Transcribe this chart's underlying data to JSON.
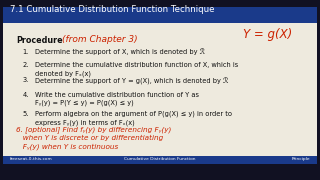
{
  "title": "7.1 Cumulative Distribution Function Technique",
  "bg_color": "#111122",
  "slide_bg": "#eeeade",
  "handwritten_color": "#cc2200",
  "handwritten_annotation": "Y = g(X)",
  "procedure_label": "Procedure",
  "procedure_annotation": "(from Chapter 3)",
  "steps": [
    "Determine the support of X, which is denoted by ℛ",
    "Determine the cumulative distribution function of X, which is\ndenoted by Fₓ(x)",
    "Determine the support of Y = g(X), which is denoted by ℛ",
    "Write the cumulative distribution function of Y as\nFᵧ(y) = P(Y ≤ y) = P(g(X) ≤ y)",
    "Perform algebra on the argument of P(g(X) ≤ y) in order to\nexpress Fᵧ(y) in terms of Fₓ(x)"
  ],
  "step6_handwritten": "6. [optional] Find fᵧ(y) by differencing Fᵧ(y)\n   when Y is discrete or by differentiating\n   Fᵧ(y) when Y is continuous",
  "footer_left": "freeseat-0-this.com",
  "footer_center": "Cumulative Distribution Function",
  "footer_right": "Principle",
  "title_bar_color": "#1a3a8a",
  "footer_bar_color": "#1a3a8a"
}
